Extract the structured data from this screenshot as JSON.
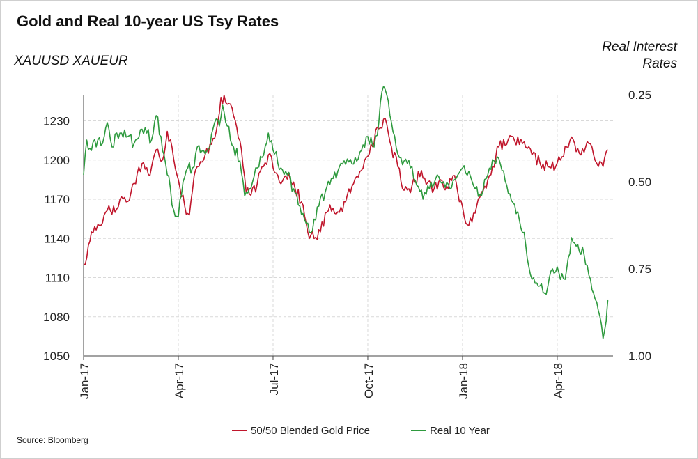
{
  "chart_data": {
    "type": "line",
    "title": "Gold and Real 10-year US Tsy Rates",
    "left_axis_label": "XAUUSD XAUEUR",
    "right_axis_label": [
      "Real Interest",
      "Rates"
    ],
    "source": "Source: Bloomberg",
    "x_ticks": [
      "Jan-17",
      "Apr-17",
      "Jul-17",
      "Oct-17",
      "Jan-18",
      "Apr-18"
    ],
    "left_axis": {
      "ticks": [
        1050,
        1080,
        1110,
        1140,
        1170,
        1200,
        1230
      ],
      "range": [
        1050,
        1250
      ]
    },
    "right_axis": {
      "ticks": [
        "0.25",
        "0.50",
        "0.75",
        "1.00"
      ],
      "range": [
        0.25,
        1.0
      ],
      "inverted": true
    },
    "x_range_months": [
      0,
      16.6
    ],
    "grid": true,
    "legend_position": "bottom-center",
    "series": [
      {
        "name": "50/50 Blended Gold Price",
        "axis": "left",
        "color": "#c0162c",
        "keypoints": [
          [
            0.0,
            1120
          ],
          [
            0.1,
            1125
          ],
          [
            0.25,
            1145
          ],
          [
            0.5,
            1150
          ],
          [
            0.8,
            1165
          ],
          [
            1.0,
            1160
          ],
          [
            1.2,
            1172
          ],
          [
            1.35,
            1168
          ],
          [
            1.5,
            1175
          ],
          [
            1.7,
            1190
          ],
          [
            1.9,
            1198
          ],
          [
            2.1,
            1188
          ],
          [
            2.3,
            1208
          ],
          [
            2.5,
            1200
          ],
          [
            2.65,
            1222
          ],
          [
            2.8,
            1210
          ],
          [
            3.0,
            1185
          ],
          [
            3.2,
            1165
          ],
          [
            3.35,
            1158
          ],
          [
            3.5,
            1188
          ],
          [
            3.65,
            1195
          ],
          [
            3.8,
            1200
          ],
          [
            4.0,
            1212
          ],
          [
            4.2,
            1222
          ],
          [
            4.35,
            1248
          ],
          [
            4.5,
            1244
          ],
          [
            4.7,
            1240
          ],
          [
            4.85,
            1225
          ],
          [
            5.0,
            1208
          ],
          [
            5.15,
            1175
          ],
          [
            5.3,
            1173
          ],
          [
            5.5,
            1182
          ],
          [
            5.7,
            1195
          ],
          [
            5.9,
            1205
          ],
          [
            6.1,
            1190
          ],
          [
            6.3,
            1184
          ],
          [
            6.5,
            1190
          ],
          [
            6.7,
            1178
          ],
          [
            6.9,
            1168
          ],
          [
            7.1,
            1145
          ],
          [
            7.3,
            1140
          ],
          [
            7.5,
            1145
          ],
          [
            7.7,
            1160
          ],
          [
            7.9,
            1163
          ],
          [
            8.1,
            1160
          ],
          [
            8.3,
            1168
          ],
          [
            8.5,
            1180
          ],
          [
            8.7,
            1187
          ],
          [
            8.9,
            1200
          ],
          [
            9.1,
            1212
          ],
          [
            9.35,
            1224
          ],
          [
            9.55,
            1232
          ],
          [
            9.75,
            1210
          ],
          [
            9.95,
            1195
          ],
          [
            10.1,
            1178
          ],
          [
            10.3,
            1178
          ],
          [
            10.5,
            1183
          ],
          [
            10.7,
            1192
          ],
          [
            10.9,
            1183
          ],
          [
            11.1,
            1178
          ],
          [
            11.3,
            1185
          ],
          [
            11.5,
            1180
          ],
          [
            11.7,
            1188
          ],
          [
            11.85,
            1175
          ],
          [
            12.05,
            1157
          ],
          [
            12.2,
            1150
          ],
          [
            12.45,
            1165
          ],
          [
            12.7,
            1180
          ],
          [
            12.95,
            1195
          ],
          [
            13.15,
            1210
          ],
          [
            13.4,
            1212
          ],
          [
            13.6,
            1218
          ],
          [
            13.8,
            1212
          ],
          [
            14.0,
            1210
          ],
          [
            14.2,
            1204
          ],
          [
            14.45,
            1198
          ],
          [
            14.7,
            1195
          ],
          [
            14.95,
            1195
          ],
          [
            15.1,
            1200
          ],
          [
            15.3,
            1210
          ],
          [
            15.5,
            1216
          ],
          [
            15.7,
            1205
          ],
          [
            15.9,
            1210
          ],
          [
            16.1,
            1210
          ],
          [
            16.3,
            1195
          ],
          [
            16.45,
            1195
          ],
          [
            16.6,
            1208
          ]
        ]
      },
      {
        "name": "Real 10 Year",
        "axis": "right",
        "color": "#2e9a3e",
        "keypoints": [
          [
            0.0,
            0.48
          ],
          [
            0.1,
            0.38
          ],
          [
            0.25,
            0.41
          ],
          [
            0.45,
            0.38
          ],
          [
            0.6,
            0.39
          ],
          [
            0.75,
            0.33
          ],
          [
            0.9,
            0.4
          ],
          [
            1.05,
            0.36
          ],
          [
            1.2,
            0.36
          ],
          [
            1.4,
            0.37
          ],
          [
            1.6,
            0.39
          ],
          [
            1.8,
            0.35
          ],
          [
            2.0,
            0.36
          ],
          [
            2.15,
            0.38
          ],
          [
            2.3,
            0.31
          ],
          [
            2.45,
            0.37
          ],
          [
            2.6,
            0.45
          ],
          [
            2.75,
            0.52
          ],
          [
            2.85,
            0.58
          ],
          [
            3.0,
            0.6
          ],
          [
            3.15,
            0.5
          ],
          [
            3.3,
            0.46
          ],
          [
            3.45,
            0.46
          ],
          [
            3.6,
            0.4
          ],
          [
            3.8,
            0.41
          ],
          [
            4.0,
            0.4
          ],
          [
            4.15,
            0.33
          ],
          [
            4.3,
            0.34
          ],
          [
            4.4,
            0.28
          ],
          [
            4.55,
            0.34
          ],
          [
            4.75,
            0.4
          ],
          [
            4.95,
            0.44
          ],
          [
            5.1,
            0.54
          ],
          [
            5.25,
            0.52
          ],
          [
            5.45,
            0.46
          ],
          [
            5.65,
            0.43
          ],
          [
            5.85,
            0.36
          ],
          [
            6.05,
            0.42
          ],
          [
            6.25,
            0.46
          ],
          [
            6.45,
            0.48
          ],
          [
            6.65,
            0.52
          ],
          [
            6.85,
            0.57
          ],
          [
            7.05,
            0.62
          ],
          [
            7.25,
            0.64
          ],
          [
            7.45,
            0.57
          ],
          [
            7.65,
            0.53
          ],
          [
            7.85,
            0.49
          ],
          [
            8.05,
            0.47
          ],
          [
            8.3,
            0.45
          ],
          [
            8.6,
            0.43
          ],
          [
            8.8,
            0.41
          ],
          [
            9.0,
            0.37
          ],
          [
            9.2,
            0.4
          ],
          [
            9.35,
            0.33
          ],
          [
            9.45,
            0.24
          ],
          [
            9.6,
            0.25
          ],
          [
            9.75,
            0.33
          ],
          [
            9.95,
            0.42
          ],
          [
            10.15,
            0.44
          ],
          [
            10.35,
            0.46
          ],
          [
            10.55,
            0.51
          ],
          [
            10.75,
            0.55
          ],
          [
            10.95,
            0.52
          ],
          [
            11.2,
            0.48
          ],
          [
            11.4,
            0.5
          ],
          [
            11.6,
            0.52
          ],
          [
            11.8,
            0.49
          ],
          [
            12.0,
            0.46
          ],
          [
            12.2,
            0.47
          ],
          [
            12.4,
            0.52
          ],
          [
            12.6,
            0.54
          ],
          [
            12.8,
            0.48
          ],
          [
            13.0,
            0.44
          ],
          [
            13.2,
            0.45
          ],
          [
            13.4,
            0.51
          ],
          [
            13.6,
            0.56
          ],
          [
            13.8,
            0.61
          ],
          [
            14.0,
            0.68
          ],
          [
            14.2,
            0.78
          ],
          [
            14.4,
            0.8
          ],
          [
            14.6,
            0.82
          ],
          [
            14.85,
            0.75
          ],
          [
            15.05,
            0.76
          ],
          [
            15.25,
            0.78
          ],
          [
            15.45,
            0.66
          ],
          [
            15.65,
            0.68
          ],
          [
            15.85,
            0.71
          ],
          [
            15.95,
            0.74
          ],
          [
            16.15,
            0.82
          ],
          [
            16.3,
            0.87
          ],
          [
            16.45,
            0.95
          ],
          [
            16.55,
            0.9
          ],
          [
            16.6,
            0.84
          ]
        ]
      }
    ]
  }
}
